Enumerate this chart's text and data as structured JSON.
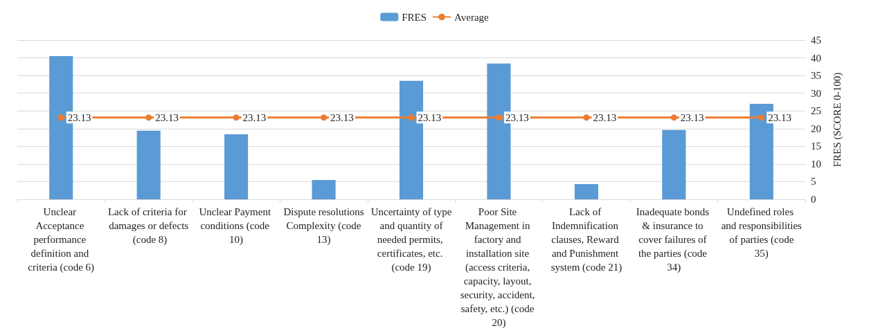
{
  "chart_data": {
    "type": "bar",
    "ylabel": "FRES (SCORE 0-100)",
    "categories": [
      "Unclear Acceptance performance definition and criteria (code 6)",
      "Lack of criteria for damages or defects (code 8)",
      "Unclear Payment conditions (code 10)",
      "Dispute resolutions Complexity (code 13)",
      "Uncertainty of type and quantity of needed permits, certificates, etc. (code 19)",
      "Poor Site Management in factory and installation site (access criteria, capacity, layout, security, accident, safety, etc.) (code 20)",
      "Lack of Indemnification clauses, Reward and Punishment system (code 21)",
      "Inadequate bonds & insurance to cover failures of the parties (code 34)",
      "Undefined roles and responsibilities of parties (code 35)"
    ],
    "series": [
      {
        "name": "FRES",
        "color": "#5b9bd5",
        "values": [
          40.5,
          19.4,
          18.4,
          5.5,
          33.5,
          38.4,
          4.3,
          19.6,
          27.0
        ]
      },
      {
        "name": "Average",
        "type": "line",
        "color": "#ed7d31",
        "marker": "circle",
        "values": [
          23.13,
          23.13,
          23.13,
          23.13,
          23.13,
          23.13,
          23.13,
          23.13,
          23.13
        ],
        "value_labels": [
          "23.13",
          "23.13",
          "23.13",
          "23.13",
          "23.13",
          "23.13",
          "23.13",
          "23.13",
          "23.13"
        ]
      }
    ],
    "ylim": [
      0,
      45
    ],
    "yticks": [
      0,
      5,
      10,
      15,
      20,
      25,
      30,
      35,
      40,
      45
    ],
    "grid": "y",
    "legend": "top"
  }
}
